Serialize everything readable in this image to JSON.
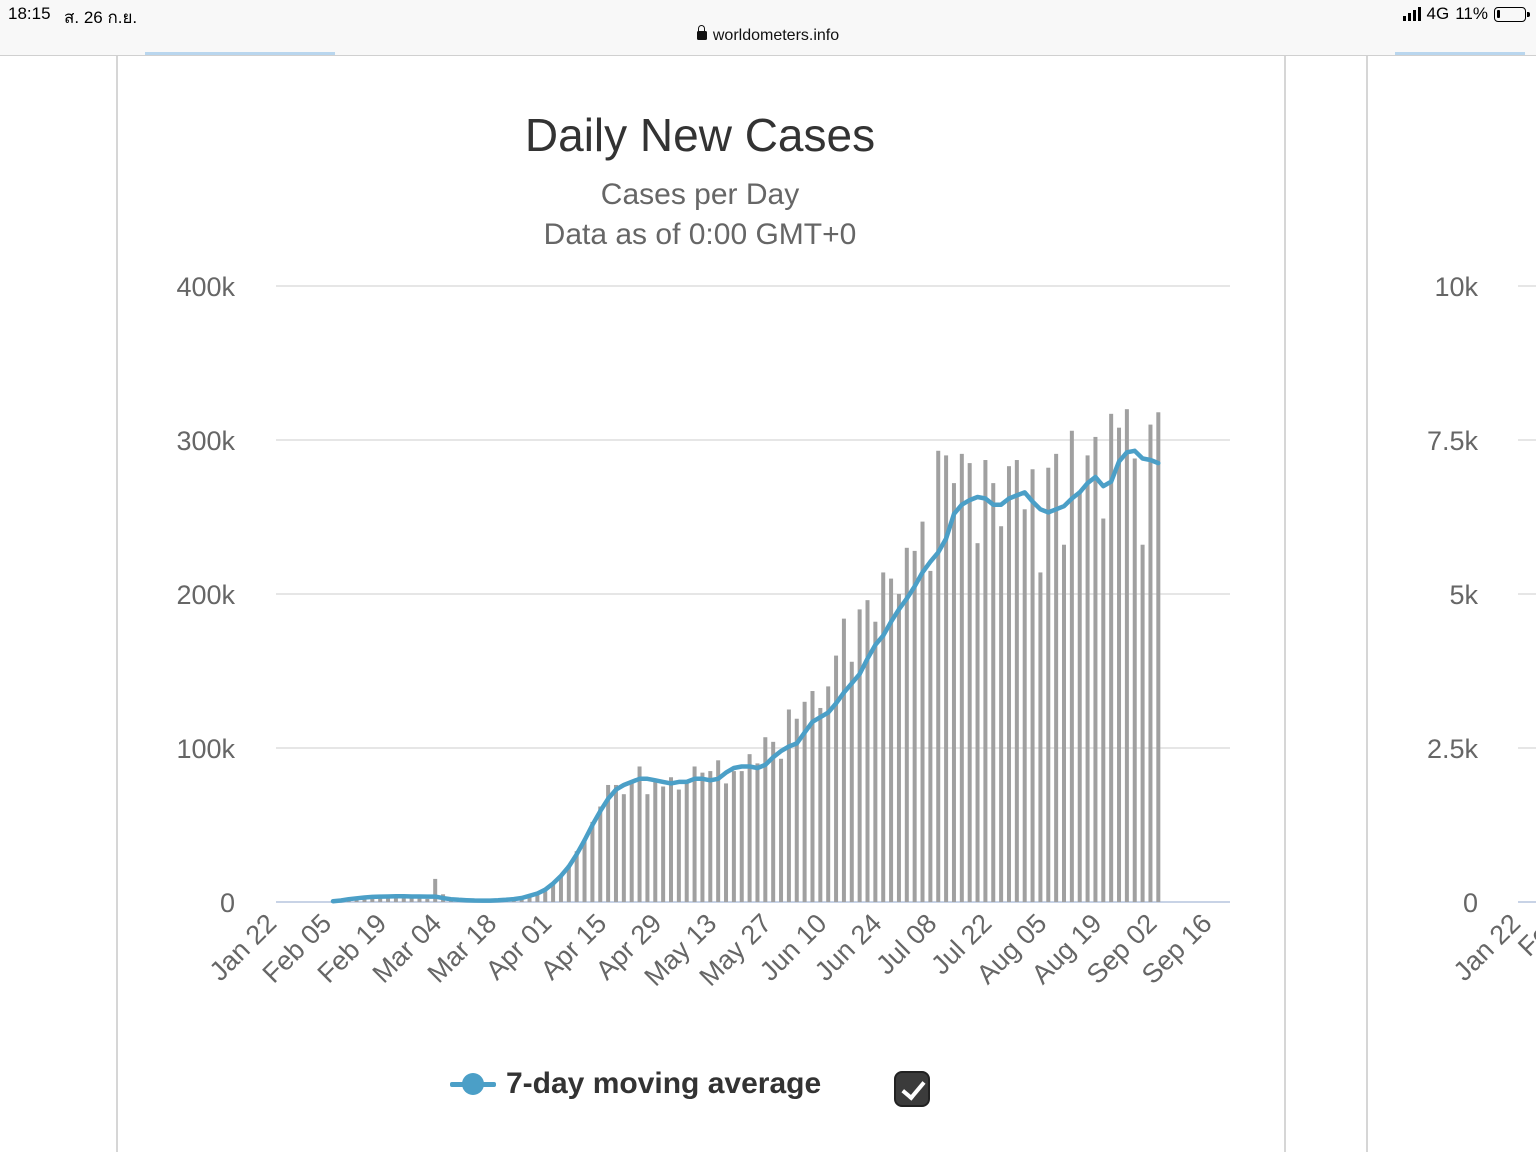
{
  "status_bar": {
    "time": "18:15",
    "date": "ส. 26 ก.ย.",
    "network": "4G",
    "battery": "11%",
    "url": "worldometers.info"
  },
  "chart_data": {
    "type": "bar",
    "title": "Daily New Cases",
    "subtitle": "Cases per Day",
    "subtitle2": "Data as of 0:00 GMT+0",
    "x_tick_labels": [
      "Jan 22",
      "Feb 05",
      "Feb 19",
      "Mar 04",
      "Mar 18",
      "Apr 01",
      "Apr 15",
      "Apr 29",
      "May 13",
      "May 27",
      "Jun 10",
      "Jun 24",
      "Jul 08",
      "Jul 22",
      "Aug 05",
      "Aug 19",
      "Sep 02",
      "Sep 16"
    ],
    "y_tick_labels": [
      "0",
      "100k",
      "200k",
      "300k",
      "400k"
    ],
    "ylim": [
      0,
      400000
    ],
    "grid": true,
    "legend_position": "bottom",
    "bar_color": "#a0a0a0",
    "line_color": "#4b9fc7",
    "day_interval": 2,
    "series": [
      {
        "type": "bar",
        "start": "Jan 22",
        "values": [
          600,
          800,
          1000,
          2000,
          2400,
          3000,
          3200,
          3800,
          3500,
          3200,
          2600,
          2500,
          2000,
          15000,
          5000,
          2500,
          1200,
          1500,
          900,
          600,
          700,
          1000,
          1400,
          2200,
          2300,
          4000,
          4500,
          7000,
          12000,
          17000,
          24000,
          33000,
          41000,
          52000,
          62000,
          76000,
          76000,
          70000,
          79000,
          88000,
          70000,
          78000,
          75000,
          81000,
          73000,
          77000,
          88000,
          84000,
          85000,
          92000,
          77000,
          85000,
          85000,
          96000,
          90000,
          107000,
          104000,
          93000,
          125000,
          119000,
          130000,
          137000,
          126000,
          140000,
          160000,
          184000,
          156000,
          190000,
          196000,
          182000,
          214000,
          210000,
          200000,
          230000,
          228000,
          247000,
          215000,
          293000,
          290000,
          272000,
          291000,
          285000,
          233000,
          287000,
          272000,
          244000,
          283000,
          287000,
          255000,
          281000,
          214000,
          282000,
          291000,
          232000,
          306000,
          267000,
          290000,
          302000,
          249000,
          317000,
          308000,
          320000,
          288000,
          232000,
          310000,
          318000
        ]
      },
      {
        "type": "line",
        "name": "7-day moving average",
        "start": "Jan 22",
        "values": [
          500,
          1000,
          1800,
          2400,
          2900,
          3300,
          3500,
          3600,
          3700,
          3700,
          3600,
          3600,
          3500,
          3500,
          2500,
          1800,
          1400,
          1200,
          1000,
          900,
          900,
          1100,
          1400,
          1900,
          2600,
          4000,
          5500,
          8000,
          12000,
          17000,
          23000,
          31000,
          40000,
          50000,
          59000,
          67000,
          73000,
          76000,
          78000,
          80000,
          80000,
          79000,
          78000,
          77000,
          78000,
          78000,
          80000,
          80000,
          79000,
          80000,
          84000,
          87000,
          88000,
          88000,
          87000,
          89000,
          94000,
          98000,
          101000,
          103000,
          110000,
          117000,
          120000,
          123000,
          129000,
          136000,
          142000,
          148000,
          158000,
          167000,
          173000,
          182000,
          190000,
          197000,
          205000,
          214000,
          221000,
          227000,
          236000,
          252000,
          258000,
          261000,
          263000,
          262000,
          258000,
          258000,
          262000,
          264000,
          266000,
          260000,
          255000,
          253000,
          255000,
          257000,
          262000,
          266000,
          272000,
          276000,
          270000,
          273000,
          286000,
          292000,
          293000,
          288000,
          287000,
          285000
        ]
      }
    ]
  },
  "right_chart_partial": {
    "y_tick_labels": [
      "0",
      "2.5k",
      "5k",
      "7.5k",
      "10k"
    ],
    "x_tick_labels": [
      "Jan 22",
      "Feb"
    ]
  },
  "legend": {
    "label": "7-day moving average",
    "checked": true
  }
}
